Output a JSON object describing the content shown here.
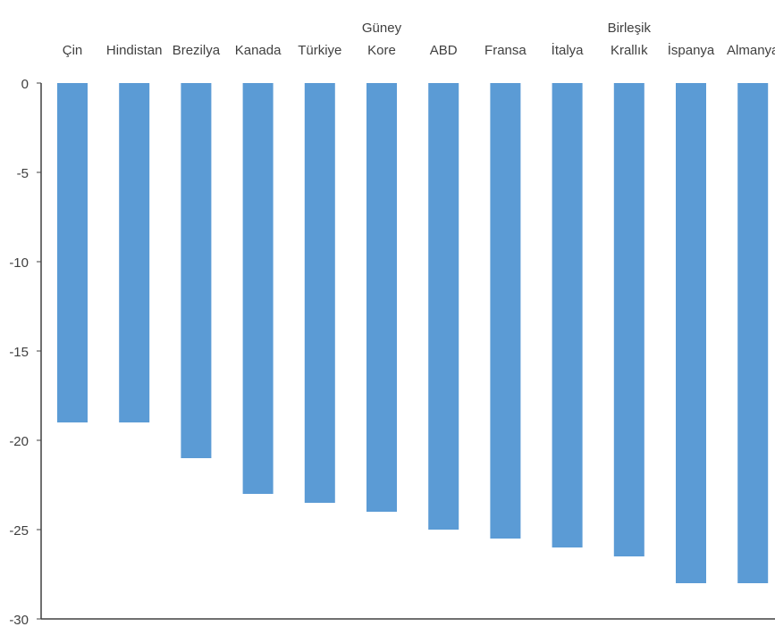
{
  "chart_data": {
    "type": "bar",
    "title": "",
    "xlabel": "",
    "ylabel": "",
    "categories": [
      [
        "Çin"
      ],
      [
        "Hindistan"
      ],
      [
        "Brezilya"
      ],
      [
        "Kanada"
      ],
      [
        "Türkiye"
      ],
      [
        "Güney",
        "Kore"
      ],
      [
        "ABD"
      ],
      [
        "Fransa"
      ],
      [
        "İtalya"
      ],
      [
        "Birleşik",
        "Krallık"
      ],
      [
        "İspanya"
      ],
      [
        "Almanya"
      ]
    ],
    "values": [
      -19,
      -19,
      -21,
      -23,
      -23.5,
      -24,
      -25,
      -25.5,
      -26,
      -26.5,
      -28,
      -28
    ],
    "ylim": [
      -30,
      0
    ],
    "yticks": [
      "0",
      "-5",
      "-10",
      "-15",
      "-20",
      "-25",
      "-30"
    ],
    "ytick_values": [
      0,
      -5,
      -10,
      -15,
      -20,
      -25,
      -30
    ],
    "grid": false,
    "legend": "none",
    "colors": {
      "bar": "#5b9bd5",
      "axis": "#404040",
      "text": "#404040"
    }
  }
}
